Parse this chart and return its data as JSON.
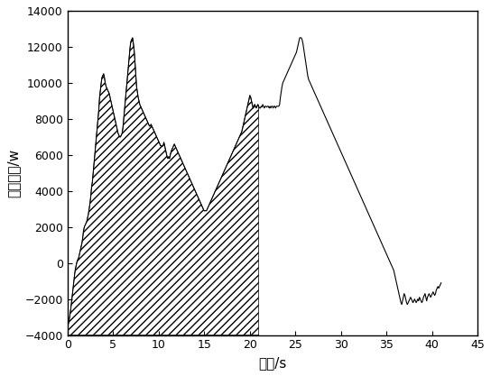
{
  "title": "",
  "xlabel": "时间/s",
  "ylabel": "电机功率/w",
  "xlim": [
    0,
    45
  ],
  "ylim": [
    -4000,
    14000
  ],
  "xticks": [
    0,
    5,
    10,
    15,
    20,
    25,
    30,
    35,
    40,
    45
  ],
  "yticks": [
    -4000,
    -2000,
    0,
    2000,
    4000,
    6000,
    8000,
    10000,
    12000,
    14000
  ],
  "hatch_end_x": 21.0,
  "x_start": 0.0,
  "x_end": 41.0,
  "line_color": "#000000",
  "background_color": "#ffffff",
  "y": [
    -3500,
    -3400,
    -3200,
    -2900,
    -2600,
    -2200,
    -1800,
    -1400,
    -1000,
    -600,
    -300,
    -100,
    100,
    200,
    300,
    500,
    700,
    900,
    1100,
    1400,
    1800,
    2000,
    2100,
    2200,
    2300,
    2500,
    2700,
    3000,
    3300,
    3700,
    4200,
    4500,
    5000,
    5500,
    6000,
    6500,
    7000,
    7500,
    8000,
    8500,
    9200,
    9600,
    10000,
    10300,
    10400,
    10500,
    10300,
    10000,
    9800,
    9700,
    9600,
    9500,
    9400,
    9200,
    9000,
    8800,
    8600,
    8400,
    8200,
    8000,
    7800,
    7600,
    7400,
    7200,
    7100,
    7000,
    7000,
    7100,
    7200,
    7500,
    8000,
    8500,
    9000,
    9500,
    10000,
    10500,
    11000,
    11500,
    12000,
    12300,
    12400,
    12500,
    12200,
    11800,
    11200,
    10500,
    9800,
    9500,
    9200,
    9000,
    8800,
    8700,
    8600,
    8500,
    8400,
    8300,
    8200,
    8100,
    8000,
    7900,
    7800,
    7700,
    7600,
    7600,
    7700,
    7600,
    7500,
    7400,
    7300,
    7200,
    7100,
    7000,
    6900,
    6800,
    6700,
    6600,
    6500,
    6500,
    6500,
    6500,
    6700,
    6500,
    6300,
    6100,
    5900,
    5800,
    5900,
    5800,
    6000,
    6200,
    6300,
    6400,
    6500,
    6600,
    6500,
    6400,
    6300,
    6200,
    6100,
    6000,
    5900,
    5800,
    5700,
    5600,
    5500,
    5400,
    5300,
    5200,
    5100,
    5000,
    4900,
    4800,
    4700,
    4600,
    4500,
    4400,
    4300,
    4200,
    4100,
    4000,
    3900,
    3800,
    3700,
    3600,
    3500,
    3400,
    3300,
    3200,
    3100,
    3000,
    2900,
    2900,
    2900,
    2900,
    3000,
    3100,
    3200,
    3300,
    3400,
    3500,
    3600,
    3700,
    3800,
    3900,
    4000,
    4100,
    4200,
    4300,
    4400,
    4500,
    4600,
    4700,
    4800,
    4900,
    5000,
    5100,
    5200,
    5300,
    5400,
    5500,
    5600,
    5700,
    5800,
    5900,
    6000,
    6100,
    6200,
    6300,
    6400,
    6500,
    6600,
    6700,
    6800,
    6900,
    7000,
    7100,
    7200,
    7300,
    7500,
    7700,
    7900,
    8100,
    8300,
    8500,
    8700,
    8900,
    9100,
    9300,
    9200,
    9000,
    8800,
    8600,
    8700,
    8800,
    8700,
    8600,
    8700,
    8800,
    8700,
    8600,
    8600,
    8700,
    8650,
    8800,
    8700,
    8600,
    8700,
    8700,
    8650,
    8700,
    8700,
    8600,
    8700,
    8600,
    8700,
    8700,
    8600,
    8700,
    8700,
    8600,
    8700,
    8700,
    8700,
    8700,
    8800,
    9200,
    9500,
    9800,
    10000,
    10100,
    10200,
    10300,
    10400,
    10500,
    10600,
    10700,
    10800,
    10900,
    11000,
    11100,
    11200,
    11300,
    11400,
    11500,
    11600,
    11700,
    11900,
    12100,
    12300,
    12500,
    12500,
    12500,
    12400,
    12200,
    11900,
    11600,
    11300,
    11000,
    10700,
    10400,
    10200,
    10100,
    10000,
    9900,
    9800,
    9700,
    9600,
    9500,
    9400,
    9300,
    9200,
    9100,
    9000,
    8900,
    8800,
    8700,
    8600,
    8500,
    8400,
    8300,
    8200,
    8100,
    8000,
    7900,
    7800,
    7700,
    7600,
    7500,
    7400,
    7300,
    7200,
    7100,
    7000,
    6900,
    6800,
    6700,
    6600,
    6500,
    6400,
    6300,
    6200,
    6100,
    6000,
    5900,
    5800,
    5700,
    5600,
    5500,
    5400,
    5300,
    5200,
    5100,
    5000,
    4900,
    4800,
    4700,
    4600,
    4500,
    4400,
    4300,
    4200,
    4100,
    4000,
    3900,
    3800,
    3700,
    3600,
    3500,
    3400,
    3300,
    3200,
    3100,
    3000,
    2900,
    2800,
    2700,
    2600,
    2500,
    2400,
    2300,
    2200,
    2100,
    2000,
    1900,
    1800,
    1700,
    1600,
    1500,
    1400,
    1300,
    1200,
    1100,
    1000,
    900,
    800,
    700,
    600,
    500,
    400,
    300,
    200,
    100,
    0,
    -100,
    -200,
    -300,
    -400,
    -600,
    -800,
    -1000,
    -1200,
    -1400,
    -1600,
    -1800,
    -2000,
    -2200,
    -2300,
    -2100,
    -1900,
    -1700,
    -1800,
    -2000,
    -2200,
    -2300,
    -2200,
    -2100,
    -2000,
    -1900,
    -2000,
    -2100,
    -2200,
    -2100,
    -2000,
    -2100,
    -2200,
    -2100,
    -2000,
    -2100,
    -1900,
    -2000,
    -2100,
    -2200,
    -2100,
    -1900,
    -1800,
    -1700,
    -1900,
    -2100,
    -1900,
    -1800,
    -1700,
    -1800,
    -1900,
    -1800,
    -1700,
    -1600,
    -1700,
    -1800,
    -1700,
    -1500,
    -1400,
    -1300,
    -1400,
    -1300,
    -1200,
    -1100
  ]
}
